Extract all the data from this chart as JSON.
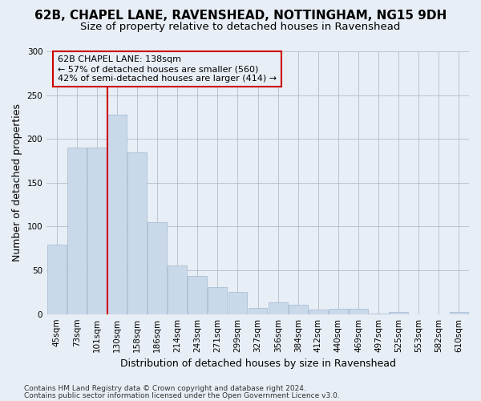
{
  "title1": "62B, CHAPEL LANE, RAVENSHEAD, NOTTINGHAM, NG15 9DH",
  "title2": "Size of property relative to detached houses in Ravenshead",
  "xlabel": "Distribution of detached houses by size in Ravenshead",
  "ylabel": "Number of detached properties",
  "categories": [
    "45sqm",
    "73sqm",
    "101sqm",
    "130sqm",
    "158sqm",
    "186sqm",
    "214sqm",
    "243sqm",
    "271sqm",
    "299sqm",
    "327sqm",
    "356sqm",
    "384sqm",
    "412sqm",
    "440sqm",
    "469sqm",
    "497sqm",
    "525sqm",
    "553sqm",
    "582sqm",
    "610sqm"
  ],
  "values": [
    79,
    190,
    190,
    228,
    185,
    105,
    56,
    44,
    31,
    25,
    7,
    13,
    11,
    5,
    6,
    6,
    1,
    2,
    0,
    0,
    2
  ],
  "bar_color": "#c9d9ea",
  "bar_edge_color": "#a0b8d0",
  "marker_label": "62B CHAPEL LANE: 138sqm",
  "annotation_line1": "← 57% of detached houses are smaller (560)",
  "annotation_line2": "42% of semi-detached houses are larger (414) →",
  "vline_color": "#cc0000",
  "vline_x_index": 3,
  "box_edge_color": "#cc0000",
  "ylim": [
    0,
    300
  ],
  "yticks": [
    0,
    50,
    100,
    150,
    200,
    250,
    300
  ],
  "footer1": "Contains HM Land Registry data © Crown copyright and database right 2024.",
  "footer2": "Contains public sector information licensed under the Open Government Licence v3.0.",
  "bg_color": "#e8eef5",
  "plot_bg_color": "#e8eef5",
  "grid_color": "#b0bec8",
  "title1_fontsize": 11,
  "title2_fontsize": 9.5,
  "ylabel_fontsize": 9,
  "xlabel_fontsize": 9,
  "tick_fontsize": 7.5,
  "footer_fontsize": 6.5
}
